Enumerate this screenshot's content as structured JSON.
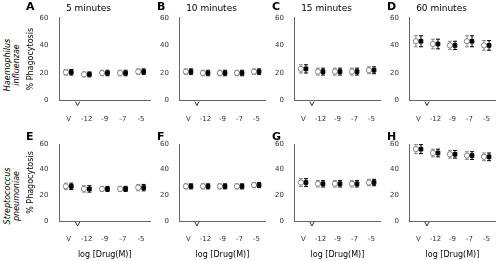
{
  "chart_data": [
    {
      "type": "errorbar",
      "title": "5 minutes",
      "annotations": [
        "A",
        "Haemophilus\ninfluenzae"
      ],
      "categories": [
        "V",
        "-12",
        "-9",
        "-7",
        "-5"
      ],
      "ylabel": "% Phagocytosis",
      "ylim": [
        0,
        60
      ],
      "yticks": [
        0,
        20,
        40,
        60
      ],
      "grid": false,
      "series": [
        {
          "color": "#888888",
          "marker": "circle",
          "values": [
            20.5,
            19.0,
            20.0,
            20.0,
            21.0
          ],
          "errors": [
            2.0,
            1.8,
            2.0,
            2.0,
            2.0
          ]
        },
        {
          "color": "#000000",
          "marker": "square",
          "values": [
            20.5,
            19.0,
            20.0,
            20.0,
            21.0
          ],
          "errors": [
            2.0,
            1.8,
            2.0,
            2.0,
            2.0
          ]
        }
      ]
    },
    {
      "type": "errorbar",
      "title": "10 minutes",
      "annotations": [
        "B"
      ],
      "categories": [
        "V",
        "-12",
        "-9",
        "-7",
        "-5"
      ],
      "ylim": [
        0,
        60
      ],
      "yticks": [
        0,
        20,
        40,
        60
      ],
      "grid": false,
      "series": [
        {
          "color": "#888888",
          "marker": "circle",
          "values": [
            21.0,
            20.0,
            20.0,
            20.0,
            21.0
          ],
          "errors": [
            2.0,
            2.0,
            2.0,
            2.0,
            2.0
          ]
        },
        {
          "color": "#000000",
          "marker": "square",
          "values": [
            21.0,
            20.0,
            20.0,
            20.0,
            21.0
          ],
          "errors": [
            2.0,
            2.0,
            2.0,
            2.0,
            2.0
          ]
        }
      ]
    },
    {
      "type": "errorbar",
      "title": "15 minutes",
      "annotations": [
        "C"
      ],
      "categories": [
        "V",
        "-12",
        "-9",
        "-7",
        "-5"
      ],
      "ylim": [
        0,
        60
      ],
      "yticks": [
        0,
        20,
        40,
        60
      ],
      "grid": false,
      "series": [
        {
          "color": "#888888",
          "marker": "circle",
          "values": [
            23.0,
            21.0,
            21.0,
            21.0,
            22.0
          ],
          "errors": [
            3.0,
            2.5,
            2.5,
            2.5,
            2.5
          ]
        },
        {
          "color": "#000000",
          "marker": "square",
          "values": [
            23.0,
            21.0,
            21.0,
            21.0,
            22.0
          ],
          "errors": [
            3.0,
            2.5,
            2.5,
            2.5,
            2.5
          ]
        }
      ]
    },
    {
      "type": "errorbar",
      "title": "60 minutes",
      "annotations": [
        "D"
      ],
      "categories": [
        "V",
        "-12",
        "-9",
        "-7",
        "-5"
      ],
      "ylim": [
        0,
        60
      ],
      "yticks": [
        0,
        20,
        40,
        60
      ],
      "grid": false,
      "series": [
        {
          "color": "#888888",
          "marker": "circle",
          "values": [
            43.0,
            41.0,
            40.0,
            43.0,
            40.0
          ],
          "errors": [
            4.0,
            3.5,
            3.0,
            4.0,
            3.5
          ]
        },
        {
          "color": "#000000",
          "marker": "square",
          "values": [
            43.0,
            41.0,
            40.0,
            43.0,
            40.0
          ],
          "errors": [
            4.0,
            3.5,
            3.0,
            4.0,
            3.5
          ]
        }
      ]
    },
    {
      "type": "errorbar",
      "annotations": [
        "E",
        "Streptococcus\npneumoniae"
      ],
      "categories": [
        "V",
        "-12",
        "-9",
        "-7",
        "-5"
      ],
      "xlabel": "log [Drug(M)]",
      "ylabel": "% Phagocytosis",
      "ylim": [
        0,
        60
      ],
      "yticks": [
        0,
        20,
        40,
        60
      ],
      "grid": false,
      "series": [
        {
          "color": "#888888",
          "marker": "circle",
          "values": [
            27.0,
            25.0,
            25.0,
            25.0,
            26.0
          ],
          "errors": [
            2.5,
            2.5,
            2.0,
            2.0,
            2.5
          ]
        },
        {
          "color": "#000000",
          "marker": "square",
          "values": [
            27.0,
            25.0,
            25.0,
            25.0,
            26.0
          ],
          "errors": [
            2.5,
            2.5,
            2.0,
            2.0,
            2.5
          ]
        }
      ]
    },
    {
      "type": "errorbar",
      "annotations": [
        "F"
      ],
      "categories": [
        "V",
        "-12",
        "-9",
        "-7",
        "-5"
      ],
      "xlabel": "log [Drug(M)]",
      "ylim": [
        0,
        60
      ],
      "yticks": [
        0,
        20,
        40,
        60
      ],
      "grid": false,
      "series": [
        {
          "color": "#888888",
          "marker": "circle",
          "values": [
            27.0,
            27.0,
            27.0,
            27.0,
            28.0
          ],
          "errors": [
            2.0,
            2.0,
            2.0,
            2.0,
            2.0
          ]
        },
        {
          "color": "#000000",
          "marker": "square",
          "values": [
            27.0,
            27.0,
            27.0,
            27.0,
            28.0
          ],
          "errors": [
            2.0,
            2.0,
            2.0,
            2.0,
            2.0
          ]
        }
      ]
    },
    {
      "type": "errorbar",
      "annotations": [
        "G"
      ],
      "categories": [
        "V",
        "-12",
        "-9",
        "-7",
        "-5"
      ],
      "xlabel": "log [Drug(M)]",
      "ylim": [
        0,
        60
      ],
      "yticks": [
        0,
        20,
        40,
        60
      ],
      "grid": false,
      "series": [
        {
          "color": "#888888",
          "marker": "circle",
          "values": [
            30.0,
            29.0,
            29.0,
            29.0,
            30.0
          ],
          "errors": [
            3.0,
            2.5,
            2.5,
            2.5,
            2.5
          ]
        },
        {
          "color": "#000000",
          "marker": "square",
          "values": [
            30.0,
            29.0,
            29.0,
            29.0,
            30.0
          ],
          "errors": [
            3.0,
            2.5,
            2.5,
            2.5,
            2.5
          ]
        }
      ]
    },
    {
      "type": "errorbar",
      "annotations": [
        "H"
      ],
      "categories": [
        "V",
        "-12",
        "-9",
        "-7",
        "-5"
      ],
      "xlabel": "log [Drug(M)]",
      "ylim": [
        0,
        60
      ],
      "yticks": [
        0,
        20,
        40,
        60
      ],
      "grid": false,
      "series": [
        {
          "color": "#888888",
          "marker": "circle",
          "values": [
            56.0,
            53.0,
            52.0,
            51.0,
            50.0
          ],
          "errors": [
            3.5,
            3.0,
            3.0,
            3.0,
            3.0
          ]
        },
        {
          "color": "#000000",
          "marker": "square",
          "values": [
            56.0,
            53.0,
            52.0,
            51.0,
            50.0
          ],
          "errors": [
            3.5,
            3.0,
            3.0,
            3.0,
            3.0
          ]
        }
      ]
    }
  ]
}
